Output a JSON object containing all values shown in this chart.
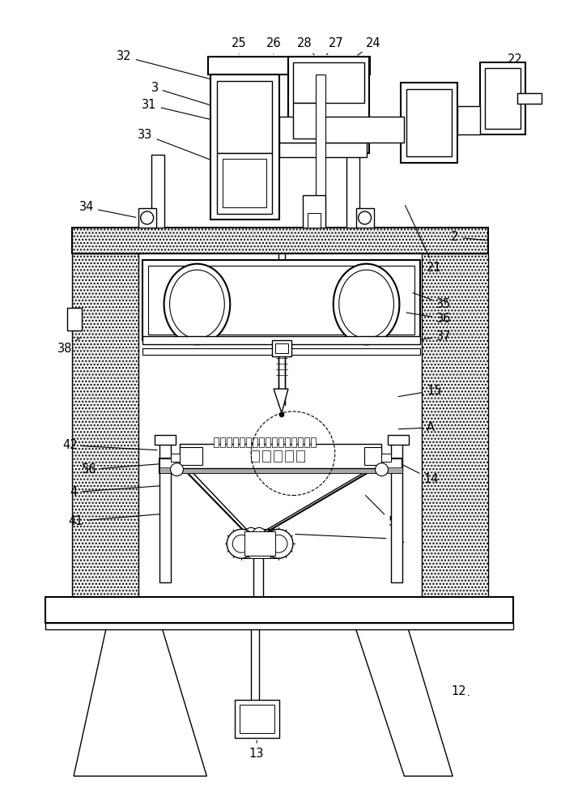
{
  "fig_width": 6.93,
  "fig_height": 10.0,
  "dpi": 100,
  "bg_color": "#ffffff",
  "lc": "#000000"
}
